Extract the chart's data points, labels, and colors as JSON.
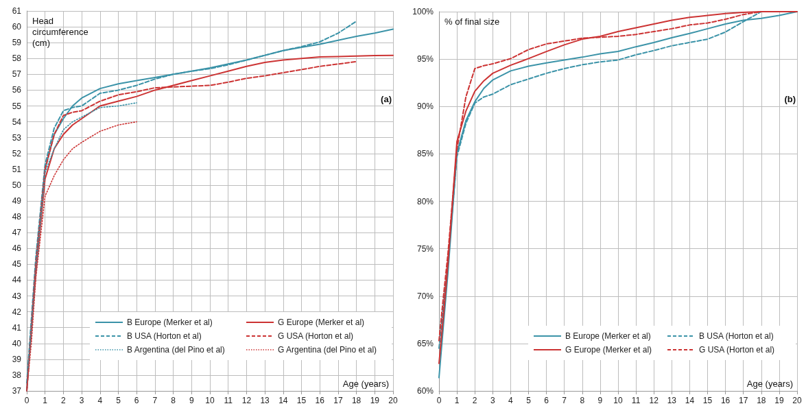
{
  "chart_data": [
    {
      "type": "line",
      "ylabel": "Head circumference (cm)",
      "xlabel": "Age (years)",
      "annotations": [
        "(a)"
      ],
      "grid": true,
      "legend": "bottom right",
      "marker": "none",
      "x": [
        0,
        0.25,
        0.5,
        1,
        1.5,
        2,
        2.5,
        3,
        4,
        5,
        6,
        7,
        8,
        9,
        10,
        11,
        12,
        13,
        14,
        15,
        16,
        17,
        18,
        19,
        20
      ],
      "xlim": [
        0,
        20
      ],
      "xticks": [
        0,
        1,
        2,
        3,
        4,
        5,
        6,
        7,
        8,
        9,
        10,
        11,
        12,
        13,
        14,
        15,
        16,
        17,
        18,
        19,
        20
      ],
      "ylim": [
        37,
        61
      ],
      "yticks": [
        37,
        38,
        39,
        40,
        41,
        42,
        43,
        44,
        45,
        46,
        47,
        48,
        49,
        50,
        51,
        52,
        53,
        54,
        55,
        56,
        57,
        58,
        59,
        60,
        61
      ],
      "series": [
        {
          "name": "B Europe (Merker et al)",
          "color": "#3b93a8",
          "line_style": "solid",
          "values": [
            37,
            41,
            44.8,
            51,
            53.2,
            54.2,
            55,
            55.5,
            56.1,
            56.4,
            56.6,
            56.8,
            57.0,
            57.2,
            57.4,
            57.65,
            57.9,
            58.2,
            58.5,
            58.7,
            58.9,
            59.15,
            59.4,
            59.6,
            59.85
          ]
        },
        {
          "name": "G Europe (Merker et al)",
          "color": "#cc3333",
          "line_style": "solid",
          "values": [
            37,
            40.8,
            44.5,
            50.4,
            52.3,
            53.2,
            53.8,
            54.2,
            55.0,
            55.3,
            55.6,
            56.0,
            56.3,
            56.6,
            56.9,
            57.2,
            57.5,
            57.75,
            57.9,
            58.0,
            58.1,
            58.12,
            58.15,
            58.18,
            58.2
          ]
        },
        {
          "name": "B USA (Horton et al)",
          "color": "#3b93a8",
          "line_style": "dashed",
          "values": [
            37.5,
            41.5,
            45.5,
            51.3,
            53.6,
            54.7,
            54.9,
            55.0,
            55.8,
            56.0,
            56.3,
            56.7,
            57.0,
            57.2,
            57.35,
            57.6,
            57.9,
            58.2,
            58.5,
            58.75,
            59.05,
            59.6,
            60.35,
            null,
            null
          ]
        },
        {
          "name": "G USA (Horton et al)",
          "color": "#cc3333",
          "line_style": "dashed",
          "values": [
            37,
            41,
            45,
            51,
            53.2,
            54.4,
            54.6,
            54.7,
            55.3,
            55.7,
            55.9,
            56.15,
            56.2,
            56.25,
            56.3,
            56.5,
            56.75,
            56.9,
            57.1,
            57.3,
            57.5,
            57.65,
            57.8,
            null,
            null
          ]
        },
        {
          "name": "B Argentina (del Pino et al)",
          "color": "#3b93a8",
          "line_style": "dotted",
          "values": [
            37,
            40.8,
            44.5,
            50.8,
            52.3,
            53.5,
            54.0,
            54.3,
            54.9,
            55.0,
            55.2,
            null,
            null,
            null,
            null,
            null,
            null,
            null,
            null,
            null,
            null,
            null,
            null,
            null,
            null
          ]
        },
        {
          "name": "G Argentina (del Pino et al)",
          "color": "#cc3333",
          "line_style": "dotted",
          "values": [
            37,
            40,
            44.2,
            49.3,
            50.6,
            51.6,
            52.3,
            52.7,
            53.4,
            53.8,
            54.0,
            null,
            null,
            null,
            null,
            null,
            null,
            null,
            null,
            null,
            null,
            null,
            null,
            null,
            null
          ]
        }
      ]
    },
    {
      "type": "line",
      "ylabel": "% of final size",
      "xlabel": "Age (years)",
      "annotations": [
        "(b)"
      ],
      "grid": true,
      "legend": "bottom right",
      "marker": "none",
      "x": [
        0,
        0.25,
        0.5,
        1,
        1.5,
        2,
        2.5,
        3,
        4,
        5,
        6,
        7,
        8,
        9,
        10,
        11,
        12,
        13,
        14,
        15,
        16,
        17,
        18,
        19,
        20
      ],
      "xlim": [
        0,
        20
      ],
      "xticks": [
        0,
        1,
        2,
        3,
        4,
        5,
        6,
        7,
        8,
        9,
        10,
        11,
        12,
        13,
        14,
        15,
        16,
        17,
        18,
        19,
        20
      ],
      "ylim": [
        60,
        100
      ],
      "yticks": [
        {
          "value": 60,
          "label": "60%"
        },
        {
          "value": 65,
          "label": "65%"
        },
        {
          "value": 70,
          "label": "70%"
        },
        {
          "value": 75,
          "label": "75%"
        },
        {
          "value": 80,
          "label": "80%"
        },
        {
          "value": 85,
          "label": "85%"
        },
        {
          "value": 90,
          "label": "90%"
        },
        {
          "value": 95,
          "label": "95%"
        },
        {
          "value": 100,
          "label": "100%"
        }
      ],
      "series": [
        {
          "name": "B Europe (Merker et al)",
          "color": "#3b93a8",
          "line_style": "solid",
          "values": [
            61.4,
            67,
            72.5,
            85.1,
            88.5,
            90.5,
            91.9,
            92.8,
            93.75,
            94.25,
            94.6,
            94.9,
            95.2,
            95.55,
            95.8,
            96.3,
            96.75,
            97.25,
            97.7,
            98.2,
            98.7,
            99.1,
            99.3,
            99.6,
            100
          ]
        },
        {
          "name": "B USA (Horton et al)",
          "color": "#3b93a8",
          "line_style": "dashed",
          "values": [
            64.5,
            69,
            73.5,
            84.7,
            88.2,
            90.35,
            91.0,
            91.3,
            92.3,
            92.9,
            93.5,
            94.0,
            94.4,
            94.7,
            94.9,
            95.45,
            95.9,
            96.4,
            96.75,
            97.1,
            97.85,
            98.95,
            100,
            null,
            null
          ]
        },
        {
          "name": "G Europe (Merker et al)",
          "color": "#cc3333",
          "line_style": "solid",
          "values": [
            62.9,
            68,
            73.5,
            86.3,
            89.5,
            91.6,
            92.7,
            93.5,
            94.35,
            95.05,
            95.8,
            96.5,
            97.1,
            97.4,
            97.9,
            98.3,
            98.7,
            99.1,
            99.4,
            99.6,
            99.8,
            99.93,
            100,
            100,
            100
          ]
        },
        {
          "name": "G USA (Horton et al)",
          "color": "#cc3333",
          "line_style": "dashed",
          "values": [
            65.3,
            70,
            74.5,
            85.5,
            91,
            94.0,
            94.3,
            94.5,
            95.05,
            96.0,
            96.6,
            96.9,
            97.2,
            97.3,
            97.4,
            97.6,
            97.9,
            98.2,
            98.6,
            98.8,
            99.2,
            99.7,
            100,
            null,
            null
          ]
        }
      ]
    }
  ]
}
